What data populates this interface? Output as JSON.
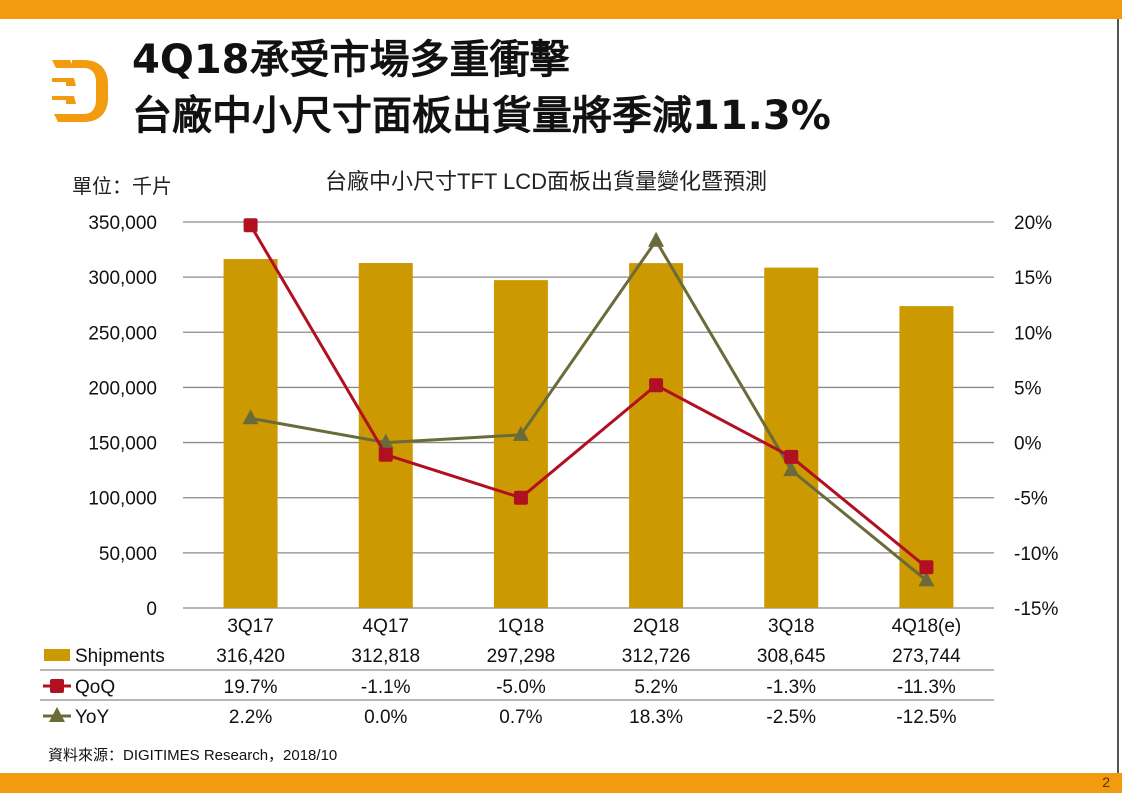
{
  "slide": {
    "title_line1": "4Q18承受市場多重衝擊",
    "title_line2": "台廠中小尺寸面板出貨量將季減11.3%",
    "unit_label": "單位：千片",
    "source": "資料來源：DIGITIMES Research，2018/10",
    "page_number": "2",
    "logo_icon": "digitimes-d-logo-icon",
    "colors": {
      "brand_orange": "#f39b0e",
      "bar": "#cc9a00",
      "qoq": "#b0101f",
      "yoy": "#6b6b3a"
    }
  },
  "chart_data": {
    "type": "bar",
    "title": "台廠中小尺寸TFT LCD面板出貨量變化暨預測",
    "categories": [
      "3Q17",
      "4Q17",
      "1Q18",
      "2Q18",
      "3Q18",
      "4Q18(e)"
    ],
    "series": [
      {
        "name": "Shipments",
        "type": "bar",
        "axis": "left",
        "values": [
          316420,
          312818,
          297298,
          312726,
          308645,
          273744
        ],
        "labels": [
          "316,420",
          "312,818",
          "297,298",
          "312,726",
          "308,645",
          "273,744"
        ]
      },
      {
        "name": "QoQ",
        "type": "line",
        "axis": "right",
        "marker": "square",
        "values": [
          19.7,
          -1.1,
          -5.0,
          5.2,
          -1.3,
          -11.3
        ],
        "labels": [
          "19.7%",
          "-1.1%",
          "-5.0%",
          "5.2%",
          "-1.3%",
          "-11.3%"
        ]
      },
      {
        "name": "YoY",
        "type": "line",
        "axis": "right",
        "marker": "triangle",
        "values": [
          2.2,
          0.0,
          0.7,
          18.3,
          -2.5,
          -12.5
        ],
        "labels": [
          "2.2%",
          "0.0%",
          "0.7%",
          "18.3%",
          "-2.5%",
          "-12.5%"
        ]
      }
    ],
    "left_axis": {
      "min": 0,
      "max": 350000,
      "step": 50000,
      "ticks": [
        "0",
        "50,000",
        "100,000",
        "150,000",
        "200,000",
        "250,000",
        "300,000",
        "350,000"
      ]
    },
    "right_axis": {
      "min": -15,
      "max": 20,
      "step": 5,
      "ticks": [
        "-15%",
        "-10%",
        "-5%",
        "0%",
        "5%",
        "10%",
        "15%",
        "20%"
      ]
    },
    "grid": true,
    "legend": "data-table-below"
  }
}
